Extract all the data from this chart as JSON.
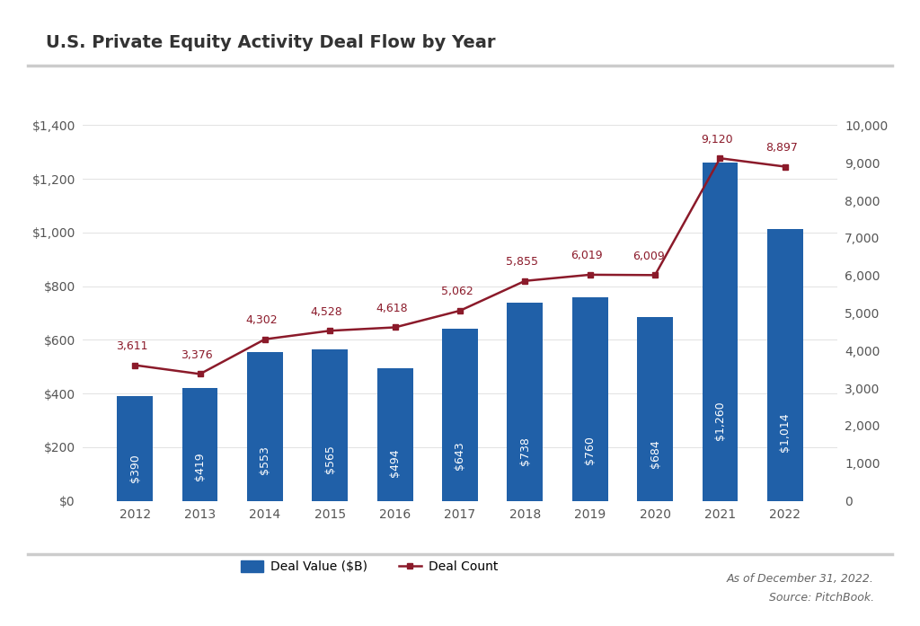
{
  "title": "U.S. Private Equity Activity Deal Flow by Year",
  "years": [
    2012,
    2013,
    2014,
    2015,
    2016,
    2017,
    2018,
    2019,
    2020,
    2021,
    2022
  ],
  "deal_values": [
    390,
    419,
    553,
    565,
    494,
    643,
    738,
    760,
    684,
    1260,
    1014
  ],
  "deal_counts": [
    3611,
    3376,
    4302,
    4528,
    4618,
    5062,
    5855,
    6019,
    6009,
    9120,
    8897
  ],
  "deal_value_labels": [
    "$390",
    "$419",
    "$553",
    "$565",
    "$494",
    "$643",
    "$738",
    "$760",
    "$684",
    "$1,260",
    "$1,014"
  ],
  "deal_count_labels": [
    "3,611",
    "3,376",
    "4,302",
    "4,528",
    "4,618",
    "5,062",
    "5,855",
    "6,019",
    "6,009",
    "9,120",
    "8,897"
  ],
  "bar_color": "#2060A8",
  "line_color": "#8B1A2A",
  "bar_label_color": "#FFFFFF",
  "left_ylim": [
    0,
    1400
  ],
  "right_ylim": [
    0,
    10000
  ],
  "left_yticks": [
    0,
    200,
    400,
    600,
    800,
    1000,
    1200,
    1400
  ],
  "left_yticklabels": [
    "$0",
    "$200",
    "$400",
    "$600",
    "$800",
    "$1,000",
    "$1,200",
    "$1,400"
  ],
  "right_yticks": [
    0,
    1000,
    2000,
    3000,
    4000,
    5000,
    6000,
    7000,
    8000,
    9000,
    10000
  ],
  "right_yticklabels": [
    "0",
    "1,000",
    "2,000",
    "3,000",
    "4,000",
    "5,000",
    "6,000",
    "7,000",
    "8,000",
    "9,000",
    "10,000"
  ],
  "legend_bar_label": "Deal Value ($B)",
  "legend_line_label": "Deal Count",
  "footnote_line1": "As of December 31, 2022.",
  "footnote_line2": "Source: PitchBook.",
  "background_color": "#FFFFFF",
  "title_fontsize": 14,
  "tick_fontsize": 10,
  "annotation_fontsize": 9,
  "bar_label_fontsize": 9,
  "legend_fontsize": 10,
  "footnote_fontsize": 9,
  "separator_color": "#CCCCCC",
  "tick_color": "#555555",
  "title_color": "#333333",
  "footnote_color": "#666666"
}
